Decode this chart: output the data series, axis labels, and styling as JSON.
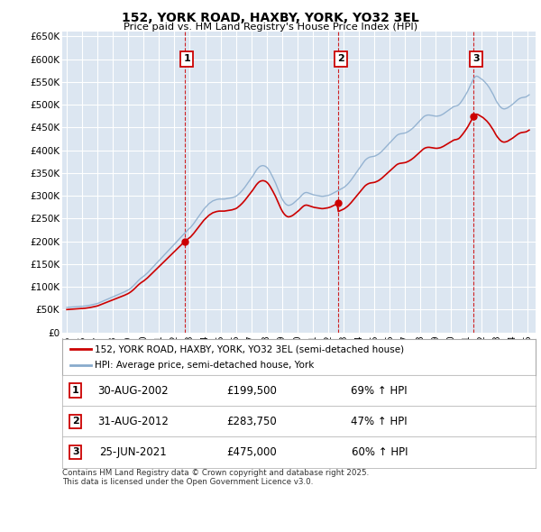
{
  "title": "152, YORK ROAD, HAXBY, YORK, YO32 3EL",
  "subtitle": "Price paid vs. HM Land Registry's House Price Index (HPI)",
  "ylim": [
    0,
    660000
  ],
  "yticks": [
    0,
    50000,
    100000,
    150000,
    200000,
    250000,
    300000,
    350000,
    400000,
    450000,
    500000,
    550000,
    600000,
    650000
  ],
  "ytick_labels": [
    "£0",
    "£50K",
    "£100K",
    "£150K",
    "£200K",
    "£250K",
    "£300K",
    "£350K",
    "£400K",
    "£450K",
    "£500K",
    "£550K",
    "£600K",
    "£650K"
  ],
  "xlim_start": 1994.7,
  "xlim_end": 2025.5,
  "xticks": [
    1995,
    1996,
    1997,
    1998,
    1999,
    2000,
    2001,
    2002,
    2003,
    2004,
    2005,
    2006,
    2007,
    2008,
    2009,
    2010,
    2011,
    2012,
    2013,
    2014,
    2015,
    2016,
    2017,
    2018,
    2019,
    2020,
    2021,
    2022,
    2023,
    2024,
    2025
  ],
  "background_color": "#ffffff",
  "plot_bg_color": "#dce6f1",
  "grid_color": "#ffffff",
  "sale_color": "#cc0000",
  "hpi_color": "#88aacc",
  "vline_color": "#cc0000",
  "sale_dates": [
    2002.66,
    2012.66,
    2021.48
  ],
  "sale_prices": [
    199500,
    283750,
    475000
  ],
  "sale_labels": [
    "1",
    "2",
    "3"
  ],
  "legend_sale_label": "152, YORK ROAD, HAXBY, YORK, YO32 3EL (semi-detached house)",
  "legend_hpi_label": "HPI: Average price, semi-detached house, York",
  "table_data": [
    [
      "1",
      "30-AUG-2002",
      "£199,500",
      "69% ↑ HPI"
    ],
    [
      "2",
      "31-AUG-2012",
      "£283,750",
      "47% ↑ HPI"
    ],
    [
      "3",
      "25-JUN-2021",
      "£475,000",
      "60% ↑ HPI"
    ]
  ],
  "footer_text": "Contains HM Land Registry data © Crown copyright and database right 2025.\nThis data is licensed under the Open Government Licence v3.0.",
  "hpi_data": {
    "1995": [
      55000,
      55200,
      55400,
      55600,
      55800,
      56000,
      56200,
      56400,
      56600,
      56800,
      57000,
      57200
    ],
    "1996": [
      57400,
      57700,
      58000,
      58400,
      58800,
      59300,
      59800,
      60400,
      61000,
      61700,
      62400,
      63100
    ],
    "1997": [
      63800,
      65000,
      66200,
      67400,
      68600,
      69800,
      71000,
      72200,
      73400,
      74600,
      75800,
      77000
    ],
    "1998": [
      78000,
      79200,
      80400,
      81600,
      82800,
      84000,
      85200,
      86500,
      87800,
      89200,
      90600,
      92000
    ],
    "1999": [
      93500,
      95500,
      97500,
      100000,
      102500,
      105500,
      108500,
      111500,
      114500,
      117000,
      119500,
      121500
    ],
    "2000": [
      123500,
      126000,
      128500,
      131000,
      134000,
      137000,
      140000,
      143000,
      146000,
      149000,
      152000,
      155000
    ],
    "2001": [
      158000,
      161000,
      164000,
      167000,
      170000,
      173000,
      176000,
      179000,
      182000,
      185000,
      188000,
      191000
    ],
    "2002": [
      194000,
      197000,
      200000,
      203000,
      206000,
      209000,
      212000,
      215000,
      218000,
      221000,
      224000,
      227000
    ],
    "2003": [
      229000,
      232000,
      235500,
      239000,
      243000,
      247000,
      251000,
      255000,
      259000,
      263000,
      267000,
      271000
    ],
    "2004": [
      274000,
      277000,
      280000,
      283000,
      285000,
      287000,
      289000,
      290000,
      291000,
      292000,
      292500,
      293000
    ],
    "2005": [
      293000,
      293000,
      293000,
      293000,
      293500,
      294000,
      294500,
      295000,
      295500,
      296000,
      297000,
      298000
    ],
    "2006": [
      299000,
      301000,
      303500,
      306000,
      309000,
      312000,
      315500,
      319000,
      323000,
      327000,
      331000,
      335000
    ],
    "2007": [
      339000,
      343000,
      347500,
      352000,
      356500,
      360000,
      363000,
      365000,
      366000,
      366500,
      366000,
      365000
    ],
    "2008": [
      363000,
      360000,
      356000,
      351000,
      345500,
      340000,
      334000,
      328000,
      321000,
      314000,
      307000,
      300000
    ],
    "2009": [
      294000,
      289000,
      285000,
      282000,
      280000,
      279000,
      279500,
      280500,
      282000,
      284000,
      286500,
      289000
    ],
    "2010": [
      291500,
      294000,
      297000,
      300000,
      303000,
      305500,
      307000,
      307500,
      307000,
      306000,
      305000,
      304000
    ],
    "2011": [
      303000,
      302000,
      301500,
      301000,
      300500,
      300000,
      299500,
      299000,
      299000,
      299500,
      300000,
      300500
    ],
    "2012": [
      301000,
      302000,
      303000,
      304500,
      306000,
      307500,
      309000,
      310500,
      312000,
      313500,
      315000,
      316500
    ],
    "2013": [
      318000,
      320000,
      322500,
      325000,
      328000,
      331500,
      335000,
      339000,
      343000,
      347000,
      351000,
      355000
    ],
    "2014": [
      359000,
      363000,
      367000,
      371000,
      375000,
      378500,
      381000,
      383000,
      384500,
      385500,
      386000,
      386500
    ],
    "2015": [
      387000,
      388000,
      389500,
      391000,
      393000,
      395500,
      398000,
      401000,
      404000,
      407000,
      410000,
      413000
    ],
    "2016": [
      416000,
      419000,
      422000,
      425000,
      428000,
      431000,
      433500,
      435000,
      436000,
      436500,
      437000,
      437500
    ],
    "2017": [
      438000,
      439000,
      440500,
      442000,
      444000,
      446000,
      448500,
      451000,
      454000,
      457000,
      460000,
      463000
    ],
    "2018": [
      466000,
      469000,
      472000,
      474500,
      476000,
      477000,
      477500,
      477500,
      477000,
      476500,
      476000,
      475500
    ],
    "2019": [
      475000,
      475000,
      475500,
      476000,
      477000,
      478500,
      480000,
      482000,
      484000,
      486000,
      488000,
      490000
    ],
    "2020": [
      492000,
      494000,
      496000,
      497000,
      497500,
      498500,
      500000,
      503000,
      507000,
      511000,
      515500,
      520000
    ],
    "2021": [
      525000,
      530000,
      536000,
      542000,
      548000,
      554000,
      559000,
      562000,
      563000,
      562000,
      560000,
      558000
    ],
    "2022": [
      556000,
      554000,
      551000,
      548000,
      545000,
      541000,
      537000,
      532000,
      527000,
      522000,
      516000,
      510000
    ],
    "2023": [
      505000,
      501000,
      497000,
      494000,
      492000,
      491000,
      491000,
      492000,
      493000,
      495000,
      497000,
      499000
    ],
    "2024": [
      501000,
      503500,
      506000,
      508500,
      511000,
      513000,
      514500,
      515500,
      516000,
      516500,
      517000,
      518000
    ],
    "2025": [
      520000,
      522000
    ]
  }
}
